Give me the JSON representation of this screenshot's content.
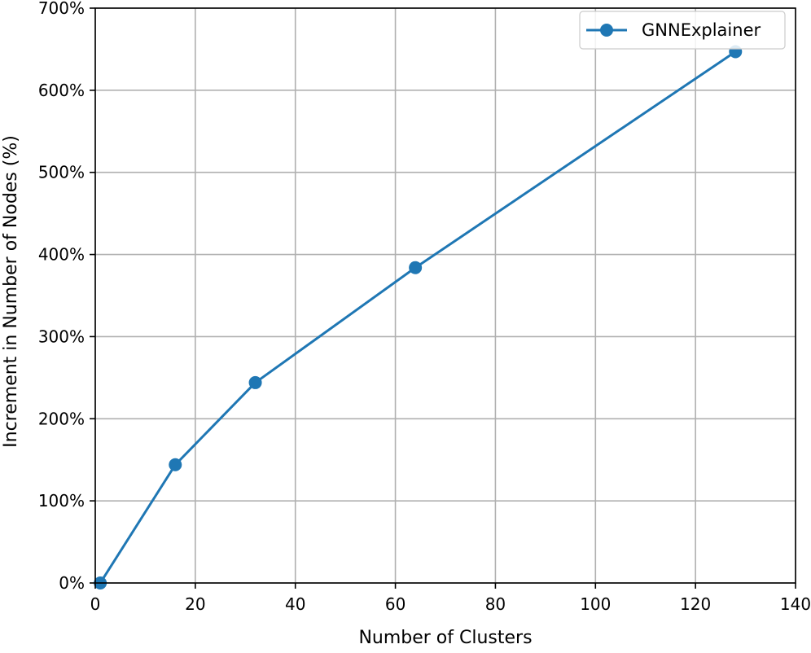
{
  "chart_data": {
    "type": "line",
    "title": "",
    "xlabel": "Number of Clusters",
    "ylabel": "Increment in Number of Nodes (%)",
    "xlim": [
      0,
      140
    ],
    "ylim": [
      0,
      700
    ],
    "xticks": [
      0,
      20,
      40,
      60,
      80,
      100,
      120,
      140
    ],
    "yticks": [
      0,
      100,
      200,
      300,
      400,
      500,
      600,
      700
    ],
    "ytick_suffix": "%",
    "grid": true,
    "legend": "top-right",
    "series": [
      {
        "name": "GNNExplainer",
        "color": "#1f77b4",
        "marker": "circle",
        "x": [
          1,
          16,
          32,
          64,
          128
        ],
        "y": [
          0,
          144,
          244,
          384,
          647
        ]
      }
    ]
  }
}
